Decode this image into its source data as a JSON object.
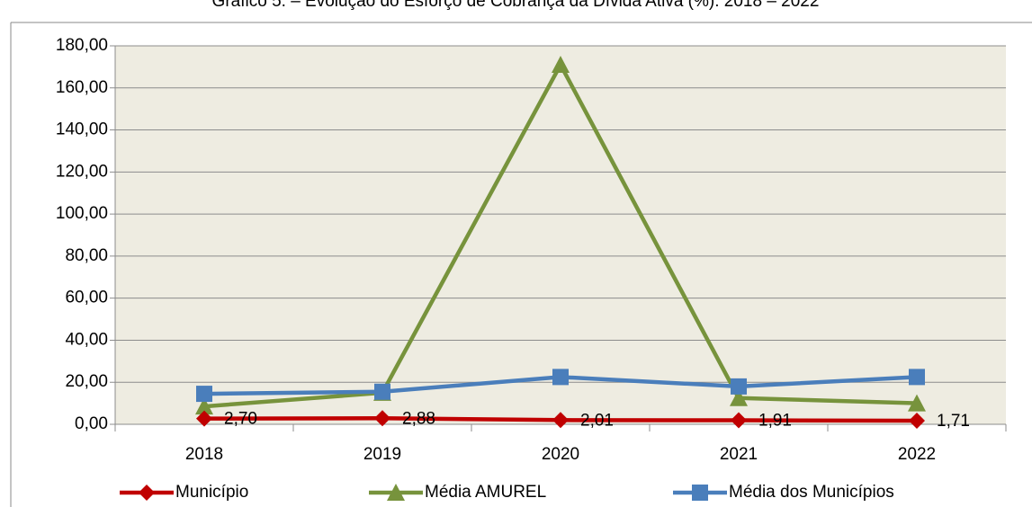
{
  "chart_data": {
    "type": "line",
    "title": "Gráfico 5. – Evolução do Esforço de Cobrança da Dívida Ativa (%): 2018 – 2022",
    "categories": [
      "2018",
      "2019",
      "2020",
      "2021",
      "2022"
    ],
    "series": [
      {
        "name": "Município",
        "color": "#c00000",
        "marker": "diamond",
        "values": [
          2.7,
          2.88,
          2.01,
          1.91,
          1.71
        ],
        "value_labels": [
          "2,70",
          "2,88",
          "2,01",
          "1,91",
          "1,71"
        ]
      },
      {
        "name": "Média AMUREL",
        "color": "#77933c",
        "marker": "triangle",
        "values": [
          8.5,
          15,
          171,
          12.5,
          10
        ]
      },
      {
        "name": "Média dos Municípios",
        "color": "#4a7ebb",
        "marker": "square",
        "values": [
          14.5,
          15.5,
          22.5,
          18,
          22.5
        ]
      }
    ],
    "ylim": [
      0,
      180
    ],
    "yticks": [
      {
        "value": 0,
        "label": "0,00"
      },
      {
        "value": 20,
        "label": "20,00"
      },
      {
        "value": 40,
        "label": "40,00"
      },
      {
        "value": 60,
        "label": "60,00"
      },
      {
        "value": 80,
        "label": "80,00"
      },
      {
        "value": 100,
        "label": "100,00"
      },
      {
        "value": 120,
        "label": "120,00"
      },
      {
        "value": 140,
        "label": "140,00"
      },
      {
        "value": 160,
        "label": "160,00"
      },
      {
        "value": 180,
        "label": "180,00"
      }
    ],
    "grid": true,
    "legend": "bottom",
    "plot_background": "#eeece1"
  }
}
